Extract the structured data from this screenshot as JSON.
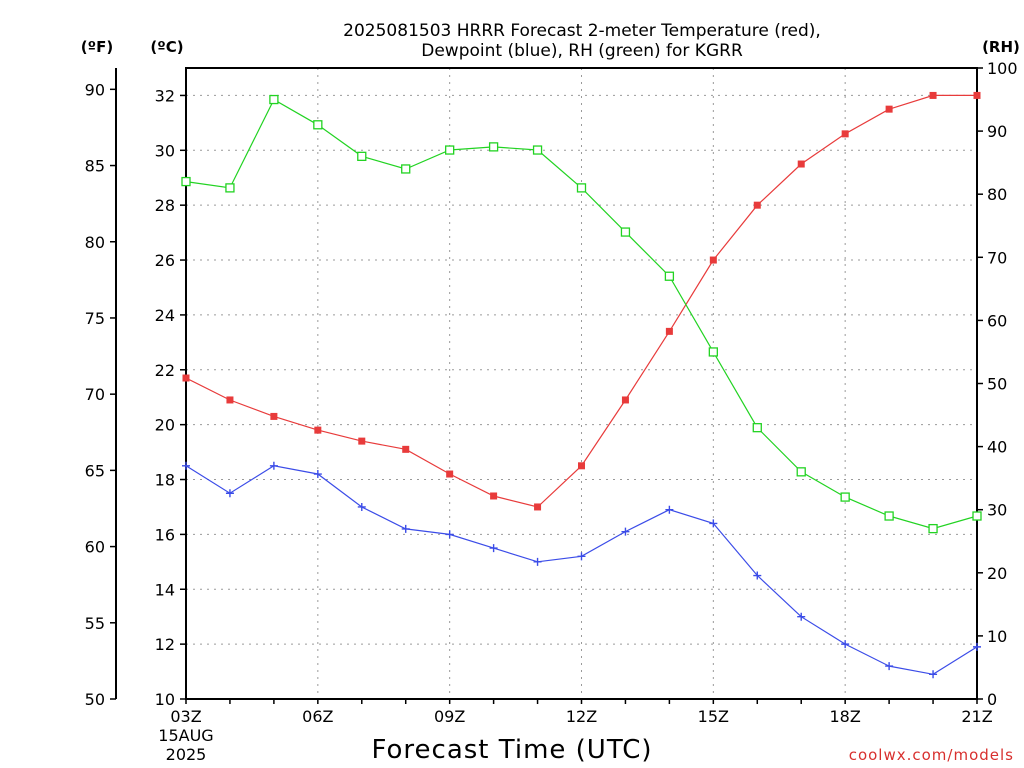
{
  "chart_data": {
    "type": "line",
    "title_lines": [
      "2025081503 HRRR Forecast 2-meter Temperature (red),",
      "Dewpoint (blue), RH (green) for KGRR"
    ],
    "xlabel": "Forecast Time (UTC)",
    "credit": "coolwx.com/models",
    "unit_labels": {
      "fahrenheit": "(ºF)",
      "celsius": "(ºC)",
      "rh": "(RH)"
    },
    "x_tick_labels": [
      "03Z",
      "06Z",
      "09Z",
      "12Z",
      "15Z",
      "18Z",
      "21Z"
    ],
    "x_start_label": [
      "15AUG",
      "2025"
    ],
    "hours_utc": [
      3,
      4,
      5,
      6,
      7,
      8,
      9,
      10,
      11,
      12,
      13,
      14,
      15,
      16,
      17,
      18,
      19,
      20,
      21
    ],
    "celsius_axis": {
      "range": [
        10,
        33
      ],
      "ticks": [
        10,
        12,
        14,
        16,
        18,
        20,
        22,
        24,
        26,
        28,
        30,
        32
      ]
    },
    "fahrenheit_axis": {
      "ticks": [
        50,
        55,
        60,
        65,
        70,
        75,
        80,
        85,
        90
      ]
    },
    "rh_axis": {
      "range": [
        0,
        100
      ],
      "ticks": [
        0,
        10,
        20,
        30,
        40,
        50,
        60,
        70,
        80,
        90,
        100
      ]
    },
    "grid": true,
    "colors": {
      "temperature": "#e83b3b",
      "dewpoint": "#3b4ce8",
      "rh": "#22d322"
    },
    "series": [
      {
        "name": "Temperature",
        "axis": "celsius",
        "marker": "filled-square",
        "values": [
          21.7,
          20.9,
          20.3,
          19.8,
          19.4,
          19.1,
          18.2,
          17.4,
          17.0,
          18.5,
          20.9,
          23.4,
          26.0,
          28.0,
          29.5,
          30.6,
          31.5,
          32.0,
          32.0
        ]
      },
      {
        "name": "Dewpoint",
        "axis": "celsius",
        "marker": "plus",
        "values": [
          18.5,
          17.5,
          18.5,
          18.2,
          17.0,
          16.2,
          16.0,
          15.5,
          15.0,
          15.2,
          16.1,
          16.9,
          16.4,
          14.5,
          13.0,
          12.0,
          11.2,
          10.9,
          11.9
        ]
      },
      {
        "name": "RH",
        "axis": "rh",
        "marker": "open-square",
        "values": [
          82,
          81,
          95,
          91,
          86,
          84,
          87,
          87.5,
          87,
          81,
          74,
          67,
          55,
          43,
          36,
          32,
          29,
          27,
          29
        ]
      }
    ]
  }
}
